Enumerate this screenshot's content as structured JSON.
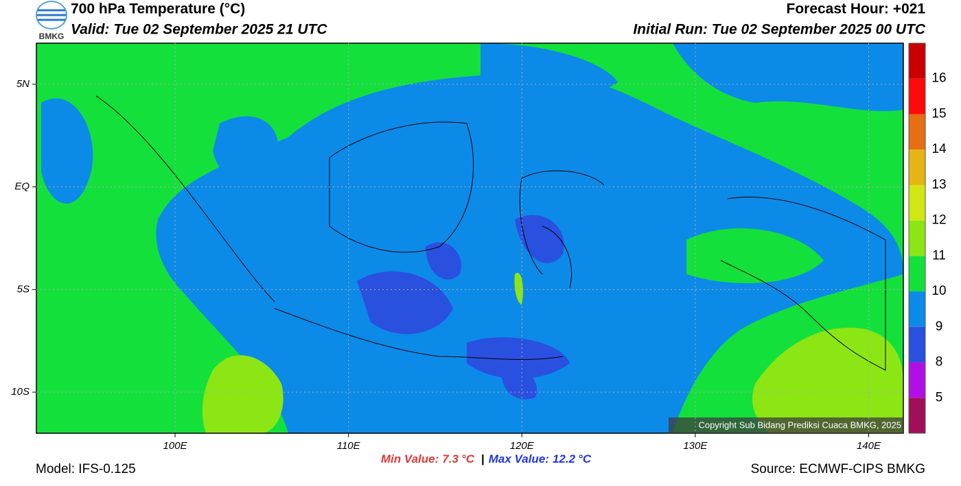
{
  "header": {
    "title": "700 hPa Temperature (°C)",
    "valid": "Valid: Tue 02 September 2025 21 UTC",
    "forecast_hour": "Forecast Hour: +021",
    "initial_run": "Initial Run: Tue 02 September 2025 00 UTC",
    "logo": "BMKG"
  },
  "map": {
    "xlim": [
      92,
      142
    ],
    "ylim": [
      -12,
      7
    ],
    "xticks": [
      {
        "value": 100,
        "label": "100E"
      },
      {
        "value": 110,
        "label": "110E"
      },
      {
        "value": 120,
        "label": "120E"
      },
      {
        "value": 130,
        "label": "130E"
      },
      {
        "value": 140,
        "label": "140E"
      }
    ],
    "yticks": [
      {
        "value": 5,
        "label": "5N"
      },
      {
        "value": 0,
        "label": "EQ"
      },
      {
        "value": -5,
        "label": "5S"
      },
      {
        "value": -10,
        "label": "10S"
      }
    ],
    "grid": true,
    "copyright": "Copyright Sub Bidang Prediksi Cuaca BMKG, 2025"
  },
  "colorbar": {
    "levels": [
      5,
      8,
      9,
      10,
      11,
      12,
      13,
      14,
      15,
      16
    ],
    "colors": [
      "#a0105a",
      "#b010e6",
      "#2a50e0",
      "#0c8ae8",
      "#14e03c",
      "#8ce614",
      "#d2e614",
      "#e6b414",
      "#e66e14",
      "#ff0a0a",
      "#c80000"
    ]
  },
  "stats": {
    "min_label": "Min Value:",
    "min_value": 7.3,
    "separator": "|",
    "max_label": "Max Value:",
    "max_value": 12.2,
    "unit": "°C"
  },
  "footer": {
    "model": "Model: IFS-0.125",
    "source": "Source: ECMWF-CIPS BMKG"
  }
}
